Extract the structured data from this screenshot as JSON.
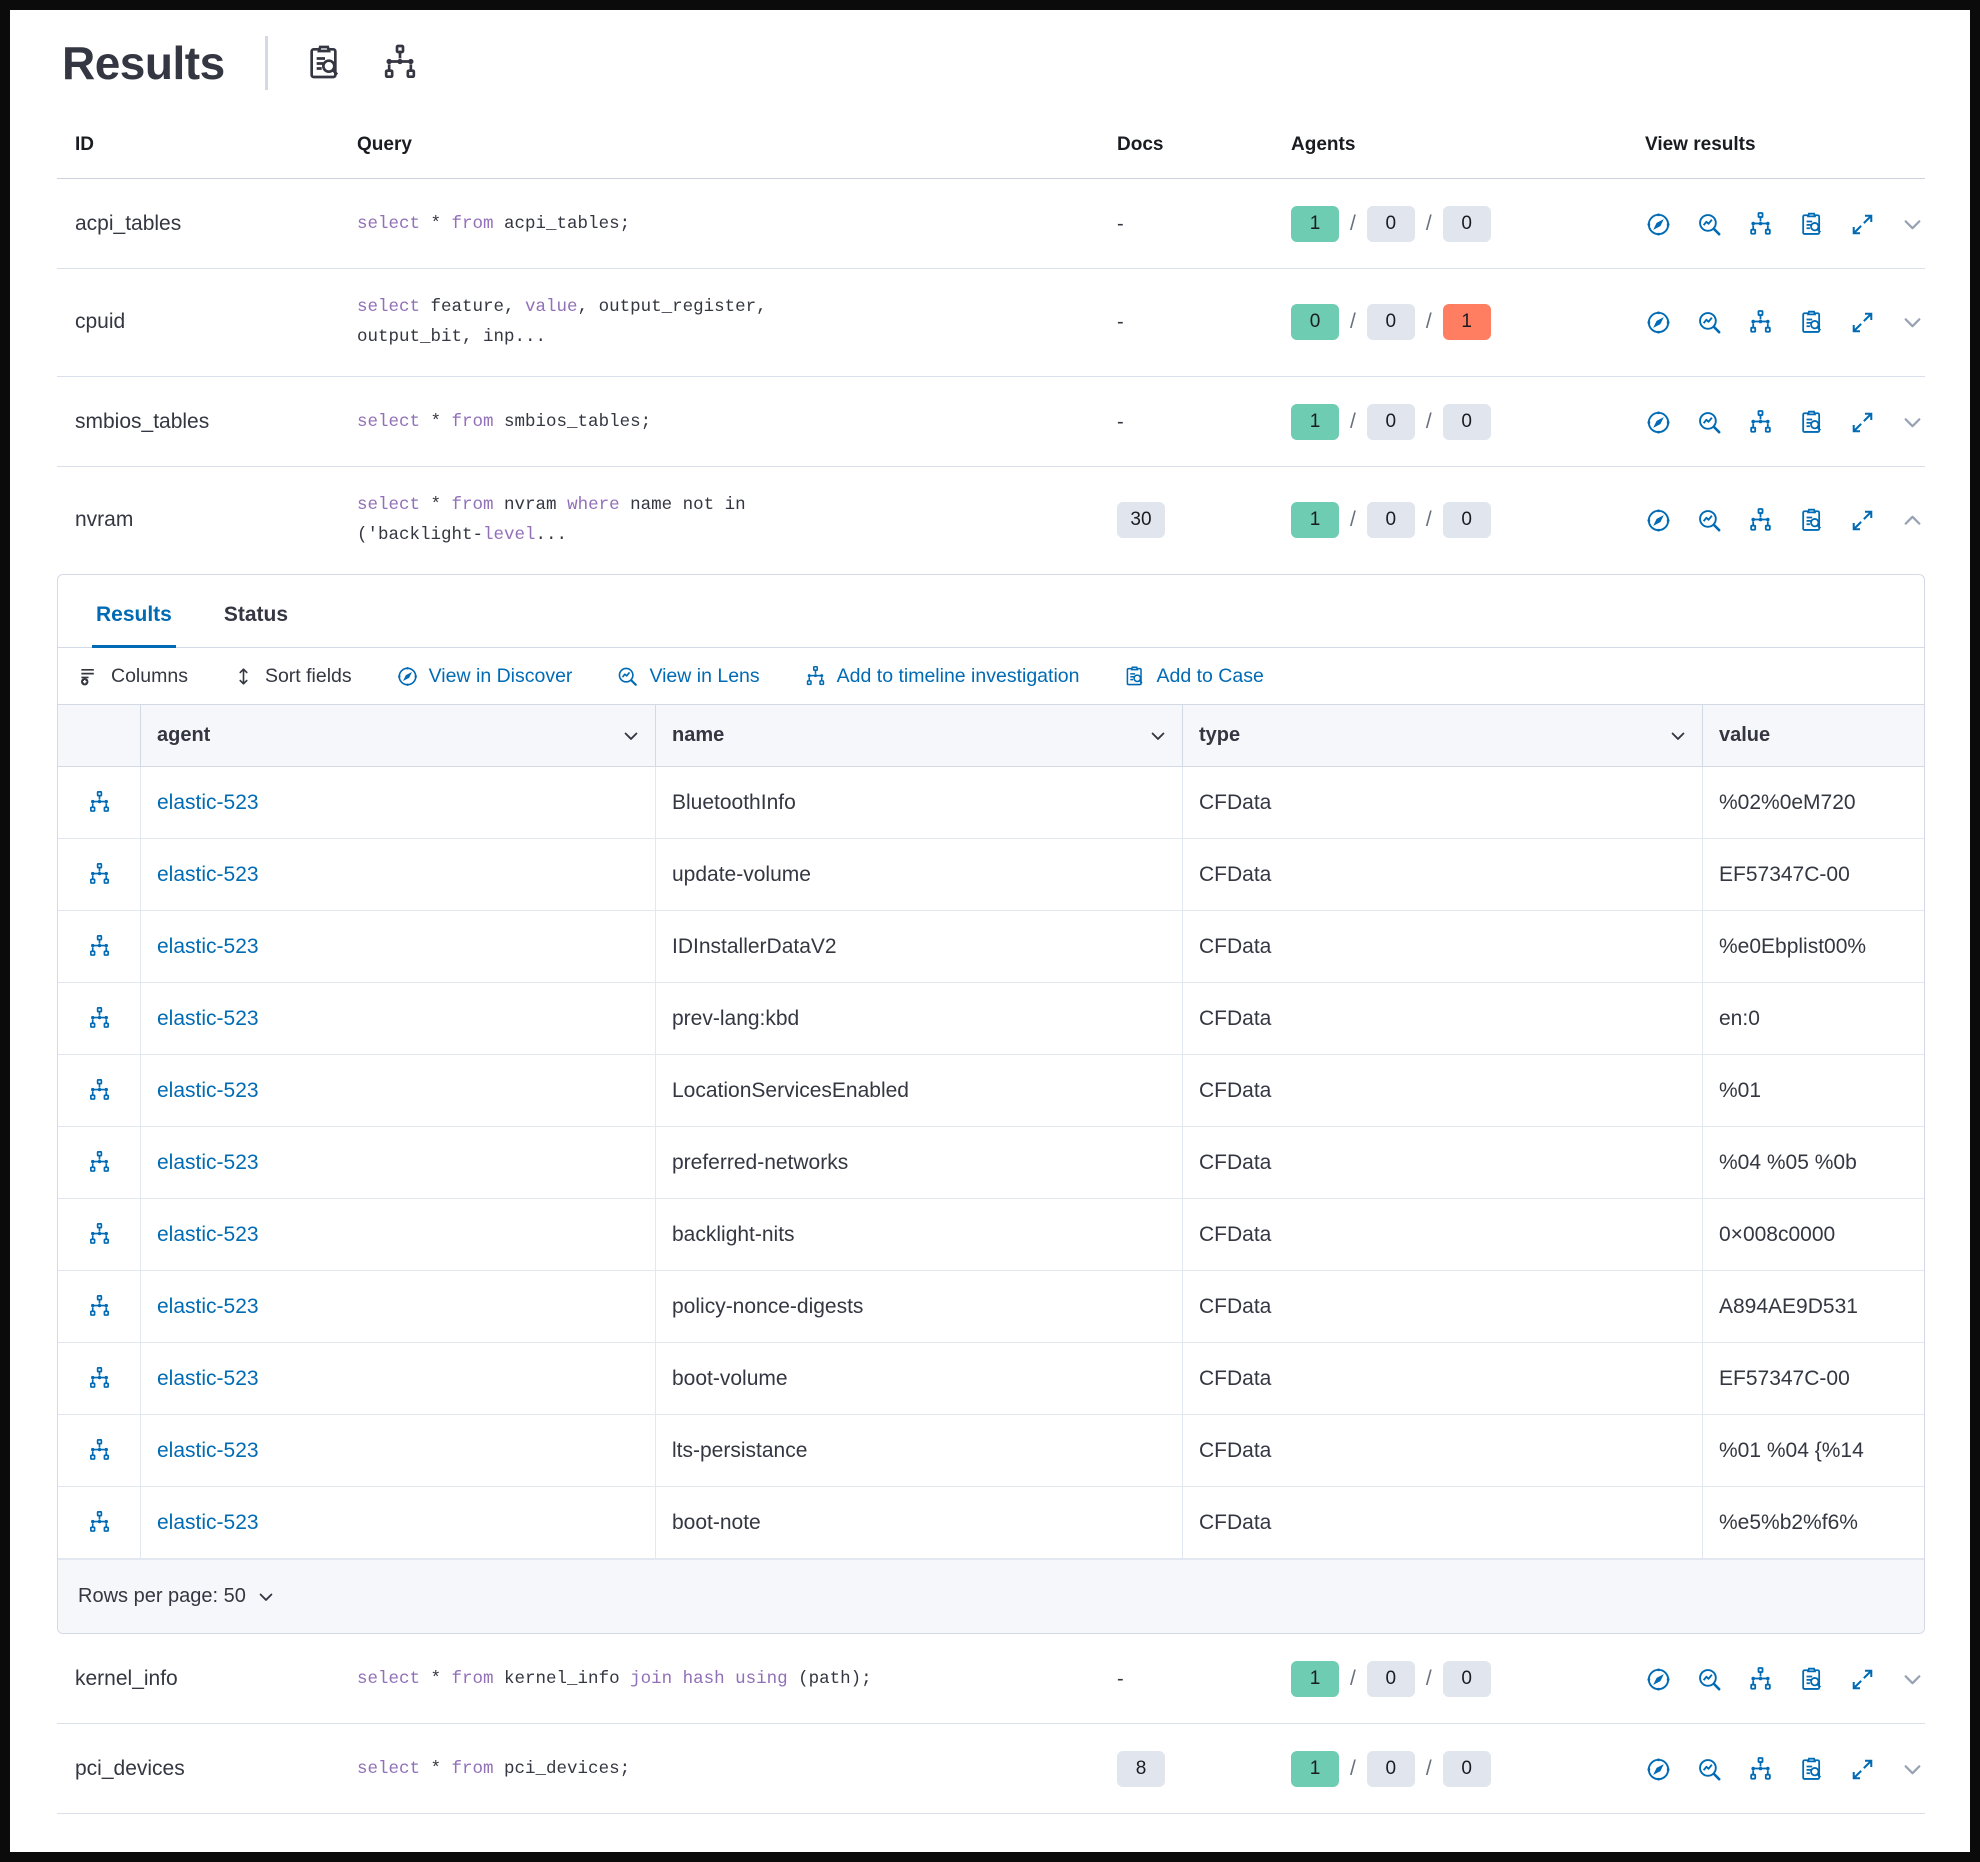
{
  "header": {
    "title": "Results",
    "icons": [
      {
        "name": "inspect-icon",
        "glyph": "clipboard-magnifier"
      },
      {
        "name": "pack-icon",
        "glyph": "node-tree"
      }
    ]
  },
  "colors": {
    "accent_blue": "#006bb4",
    "keyword_purple": "#9170b8",
    "badge_green": "#6dccb1",
    "badge_gray": "#e0e5ee",
    "badge_red": "#ff7e62",
    "grid_header_bg": "#f5f7fa"
  },
  "outer_table": {
    "columns": [
      "ID",
      "Query",
      "Docs",
      "Agents",
      "View results"
    ],
    "view_action_icons": [
      "discover-compass",
      "lens-magnifier-chart",
      "timeline-node-tree",
      "case-clipboard-magnifier",
      "expand-arrows",
      "expand-collapse-chevron"
    ],
    "rows": [
      {
        "id": "acpi_tables",
        "query_tokens": [
          [
            "select",
            1
          ],
          [
            " * ",
            0
          ],
          [
            "from",
            1
          ],
          [
            " acpi_tables;",
            0
          ]
        ],
        "docs": "-",
        "docs_is_badge": false,
        "agents": [
          {
            "value": "1",
            "color": "green"
          },
          {
            "value": "0",
            "color": "gray"
          },
          {
            "value": "0",
            "color": "gray"
          }
        ],
        "expanded": false
      },
      {
        "id": "cpuid",
        "query_tokens": [
          [
            "select",
            1
          ],
          [
            " feature, ",
            0
          ],
          [
            "value",
            1
          ],
          [
            ", output_register,\noutput_bit, inp...",
            0
          ]
        ],
        "docs": "-",
        "docs_is_badge": false,
        "agents": [
          {
            "value": "0",
            "color": "green"
          },
          {
            "value": "0",
            "color": "gray"
          },
          {
            "value": "1",
            "color": "red"
          }
        ],
        "expanded": false
      },
      {
        "id": "smbios_tables",
        "query_tokens": [
          [
            "select",
            1
          ],
          [
            " * ",
            0
          ],
          [
            "from",
            1
          ],
          [
            " smbios_tables;",
            0
          ]
        ],
        "docs": "-",
        "docs_is_badge": false,
        "agents": [
          {
            "value": "1",
            "color": "green"
          },
          {
            "value": "0",
            "color": "gray"
          },
          {
            "value": "0",
            "color": "gray"
          }
        ],
        "expanded": false
      },
      {
        "id": "nvram",
        "query_tokens": [
          [
            "select",
            1
          ],
          [
            " * ",
            0
          ],
          [
            "from",
            1
          ],
          [
            " nvram ",
            0
          ],
          [
            "where",
            1
          ],
          [
            " name not in\n('backlight-",
            0
          ],
          [
            "level",
            1
          ],
          [
            "...",
            0
          ]
        ],
        "docs": "30",
        "docs_is_badge": true,
        "agents": [
          {
            "value": "1",
            "color": "green"
          },
          {
            "value": "0",
            "color": "gray"
          },
          {
            "value": "0",
            "color": "gray"
          }
        ],
        "expanded": true
      },
      {
        "id": "kernel_info",
        "query_tokens": [
          [
            "select",
            1
          ],
          [
            " * ",
            0
          ],
          [
            "from",
            1
          ],
          [
            " kernel_info ",
            0
          ],
          [
            "join",
            1
          ],
          [
            " ",
            0
          ],
          [
            "hash",
            1
          ],
          [
            " ",
            0
          ],
          [
            "using",
            1
          ],
          [
            " (path);",
            0
          ]
        ],
        "docs": "-",
        "docs_is_badge": false,
        "agents": [
          {
            "value": "1",
            "color": "green"
          },
          {
            "value": "0",
            "color": "gray"
          },
          {
            "value": "0",
            "color": "gray"
          }
        ],
        "expanded": false
      },
      {
        "id": "pci_devices",
        "query_tokens": [
          [
            "select",
            1
          ],
          [
            " * ",
            0
          ],
          [
            "from",
            1
          ],
          [
            " pci_devices;",
            0
          ]
        ],
        "docs": "8",
        "docs_is_badge": true,
        "agents": [
          {
            "value": "1",
            "color": "green"
          },
          {
            "value": "0",
            "color": "gray"
          },
          {
            "value": "0",
            "color": "gray"
          }
        ],
        "expanded": false
      }
    ]
  },
  "results_panel": {
    "tabs": [
      {
        "label": "Results",
        "active": true
      },
      {
        "label": "Status",
        "active": false
      }
    ],
    "toolbar": {
      "columns": "Columns",
      "sort": "Sort fields",
      "discover": "View in Discover",
      "lens": "View in Lens",
      "timeline": "Add to timeline investigation",
      "case": "Add to Case"
    },
    "grid": {
      "columns": [
        "agent",
        "name",
        "type",
        "value"
      ],
      "rows": [
        {
          "agent": "elastic-523",
          "name": "BluetoothInfo",
          "type": "CFData",
          "value": "%02%0eM720"
        },
        {
          "agent": "elastic-523",
          "name": "update-volume",
          "type": "CFData",
          "value": "EF57347C-00"
        },
        {
          "agent": "elastic-523",
          "name": "IDInstallerDataV2",
          "type": "CFData",
          "value": "%e0Ebplist00%"
        },
        {
          "agent": "elastic-523",
          "name": "prev-lang:kbd",
          "type": "CFData",
          "value": "en:0"
        },
        {
          "agent": "elastic-523",
          "name": "LocationServicesEnabled",
          "type": "CFData",
          "value": "%01"
        },
        {
          "agent": "elastic-523",
          "name": "preferred-networks",
          "type": "CFData",
          "value": "%04 %05 %0b"
        },
        {
          "agent": "elastic-523",
          "name": "backlight-nits",
          "type": "CFData",
          "value": "0×008c0000"
        },
        {
          "agent": "elastic-523",
          "name": "policy-nonce-digests",
          "type": "CFData",
          "value": "A894AE9D531"
        },
        {
          "agent": "elastic-523",
          "name": "boot-volume",
          "type": "CFData",
          "value": "EF57347C-00"
        },
        {
          "agent": "elastic-523",
          "name": "lts-persistance",
          "type": "CFData",
          "value": "%01 %04 {%14"
        },
        {
          "agent": "elastic-523",
          "name": "boot-note",
          "type": "CFData",
          "value": "%e5%b2%f6%"
        }
      ],
      "footer": {
        "rows_per_page_label": "Rows per page: 50"
      }
    }
  }
}
